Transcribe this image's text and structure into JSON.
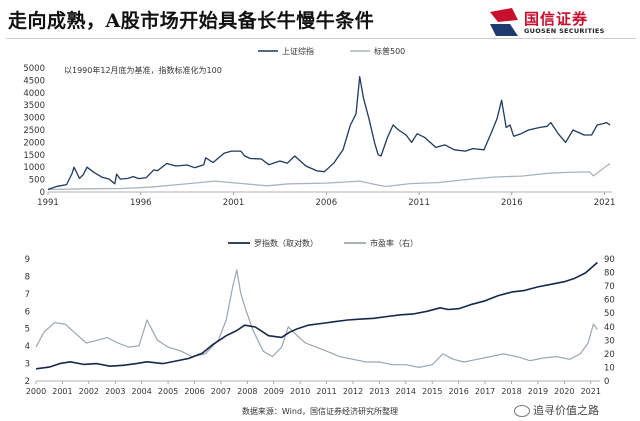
{
  "header": {
    "title": "走向成熟，A股市场开始具备长牛慢牛条件",
    "logo_cn": "国信证券",
    "logo_en": "GUOSEN SECURITIES",
    "logo_color": "#c8102e"
  },
  "chart_data": [
    {
      "type": "line",
      "note": "以1990年12月底为基准，指数标准化为100",
      "x_ticks": [
        "1991",
        "1996",
        "2001",
        "2006",
        "2011",
        "2016",
        "2021"
      ],
      "xlim": [
        1991,
        2021.4
      ],
      "ylim": [
        0,
        5000
      ],
      "y_ticks": [
        0,
        500,
        1000,
        1500,
        2000,
        2500,
        3000,
        3500,
        4000,
        4500,
        5000
      ],
      "legend_position": "top-center",
      "series": [
        {
          "name": "上证综指",
          "color": "#1f3a5f",
          "x": [
            1991.0,
            1991.5,
            1992.0,
            1992.3,
            1992.4,
            1992.7,
            1992.9,
            1993.1,
            1993.5,
            1993.9,
            1994.3,
            1994.6,
            1994.7,
            1994.9,
            1995.3,
            1995.6,
            1995.9,
            1996.3,
            1996.7,
            1996.9,
            1997.4,
            1997.9,
            1998.5,
            1998.9,
            1999.4,
            1999.5,
            1999.9,
            2000.5,
            2000.9,
            2001.4,
            2001.6,
            2001.9,
            2002.5,
            2002.9,
            2003.5,
            2003.9,
            2004.3,
            2004.9,
            2005.5,
            2005.9,
            2006.4,
            2006.9,
            2007.3,
            2007.6,
            2007.8,
            2008.0,
            2008.3,
            2008.6,
            2008.8,
            2008.95,
            2009.3,
            2009.6,
            2009.9,
            2010.3,
            2010.6,
            2010.9,
            2011.3,
            2011.9,
            2012.4,
            2012.9,
            2013.5,
            2013.9,
            2014.5,
            2014.9,
            2015.2,
            2015.45,
            2015.7,
            2015.9,
            2016.1,
            2016.5,
            2016.9,
            2017.5,
            2017.9,
            2018.1,
            2018.5,
            2018.9,
            2019.3,
            2019.9,
            2020.3,
            2020.6,
            2020.9,
            2021.1,
            2021.3
          ],
          "values": [
            100,
            230,
            300,
            750,
            1000,
            550,
            700,
            1000,
            780,
            600,
            520,
            330,
            720,
            520,
            550,
            620,
            540,
            580,
            890,
            860,
            1150,
            1050,
            1090,
            980,
            1100,
            1380,
            1190,
            1570,
            1650,
            1650,
            1450,
            1350,
            1330,
            1100,
            1250,
            1160,
            1450,
            1050,
            850,
            820,
            1160,
            1700,
            2700,
            3150,
            4650,
            3800,
            2950,
            2000,
            1500,
            1450,
            2200,
            2700,
            2500,
            2300,
            2000,
            2350,
            2200,
            1800,
            1900,
            1700,
            1650,
            1750,
            1700,
            2400,
            2950,
            3700,
            2600,
            2700,
            2250,
            2350,
            2500,
            2600,
            2650,
            2800,
            2350,
            2000,
            2500,
            2300,
            2300,
            2700,
            2750,
            2800,
            2700
          ]
        },
        {
          "name": "标普500",
          "color": "#aab4bd",
          "x": [
            1991.0,
            1993.0,
            1995.0,
            1996.5,
            1998.0,
            2000.0,
            2001.5,
            2002.8,
            2004.0,
            2006.0,
            2007.8,
            2008.8,
            2009.2,
            2010.5,
            2012.0,
            2013.5,
            2015.0,
            2016.5,
            2018.0,
            2019.0,
            2020.2,
            2020.4,
            2021.0,
            2021.3
          ],
          "values": [
            100,
            130,
            140,
            195,
            300,
            440,
            340,
            250,
            330,
            360,
            440,
            280,
            220,
            340,
            380,
            500,
            600,
            640,
            760,
            790,
            810,
            650,
            990,
            1150
          ]
        }
      ]
    },
    {
      "type": "line",
      "x_ticks": [
        "2000",
        "2001",
        "2002",
        "2003",
        "2004",
        "2005",
        "2006",
        "2007",
        "2008",
        "2009",
        "2010",
        "2011",
        "2012",
        "2013",
        "2014",
        "2015",
        "2016",
        "2017",
        "2018",
        "2019",
        "2020",
        "2021"
      ],
      "xlim": [
        2000,
        2021.35
      ],
      "ylim_left": [
        2,
        9
      ],
      "y_ticks_left": [
        2,
        3,
        4,
        5,
        6,
        7,
        8,
        9
      ],
      "ylim_right": [
        0,
        90
      ],
      "y_ticks_right": [
        0,
        10,
        20,
        30,
        40,
        50,
        60,
        70,
        80,
        90
      ],
      "legend_position": "top-center",
      "series": [
        {
          "name": "罗指数（取对数）",
          "axis": "left",
          "color": "#16284a",
          "x": [
            2000.0,
            2000.5,
            2000.9,
            2001.3,
            2001.8,
            2002.3,
            2002.8,
            2003.3,
            2003.8,
            2004.2,
            2004.8,
            2005.3,
            2005.8,
            2006.3,
            2006.7,
            2007.2,
            2007.6,
            2007.9,
            2008.3,
            2008.8,
            2009.3,
            2009.6,
            2009.9,
            2010.3,
            2010.8,
            2011.3,
            2011.8,
            2012.3,
            2012.8,
            2013.3,
            2013.8,
            2014.3,
            2014.8,
            2015.3,
            2015.6,
            2016.0,
            2016.5,
            2017.0,
            2017.5,
            2018.0,
            2018.5,
            2019.0,
            2019.5,
            2020.0,
            2020.4,
            2020.8,
            2021.1,
            2021.25
          ],
          "values": [
            2.7,
            2.8,
            3.0,
            3.1,
            2.95,
            3.0,
            2.85,
            2.9,
            3.0,
            3.1,
            3.0,
            3.15,
            3.3,
            3.6,
            4.1,
            4.6,
            4.9,
            5.2,
            5.1,
            4.6,
            4.5,
            4.8,
            5.0,
            5.2,
            5.3,
            5.4,
            5.5,
            5.55,
            5.6,
            5.7,
            5.8,
            5.85,
            6.0,
            6.2,
            6.1,
            6.15,
            6.4,
            6.6,
            6.9,
            7.1,
            7.2,
            7.4,
            7.55,
            7.7,
            7.9,
            8.2,
            8.6,
            8.8
          ]
        },
        {
          "name": "市盈率（右）",
          "axis": "right",
          "color": "#9aa6b2",
          "x": [
            2000.0,
            2000.3,
            2000.7,
            2001.1,
            2001.5,
            2001.9,
            2002.3,
            2002.7,
            2003.1,
            2003.5,
            2003.9,
            2004.2,
            2004.6,
            2005.0,
            2005.5,
            2005.9,
            2006.4,
            2006.9,
            2007.2,
            2007.45,
            2007.6,
            2007.75,
            2007.9,
            2008.2,
            2008.6,
            2008.95,
            2009.3,
            2009.55,
            2009.8,
            2010.2,
            2010.6,
            2011.0,
            2011.5,
            2012.0,
            2012.5,
            2013.0,
            2013.5,
            2014.0,
            2014.5,
            2015.0,
            2015.4,
            2015.8,
            2016.2,
            2016.7,
            2017.2,
            2017.7,
            2018.2,
            2018.7,
            2019.2,
            2019.7,
            2020.2,
            2020.6,
            2020.9,
            2021.1,
            2021.25
          ],
          "values": [
            25,
            36,
            43,
            42,
            35,
            28,
            30,
            32,
            28,
            25,
            26,
            45,
            30,
            25,
            22,
            18,
            20,
            30,
            45,
            70,
            82,
            65,
            55,
            38,
            22,
            18,
            25,
            40,
            35,
            28,
            25,
            22,
            18,
            16,
            14,
            14,
            12,
            12,
            10,
            12,
            20,
            16,
            14,
            16,
            18,
            20,
            18,
            15,
            17,
            18,
            16,
            20,
            28,
            42,
            38
          ]
        }
      ]
    }
  ],
  "footer": {
    "source": "数据来源：Wind，国信证券经济研究所整理",
    "watermark": "追寻价值之路"
  }
}
